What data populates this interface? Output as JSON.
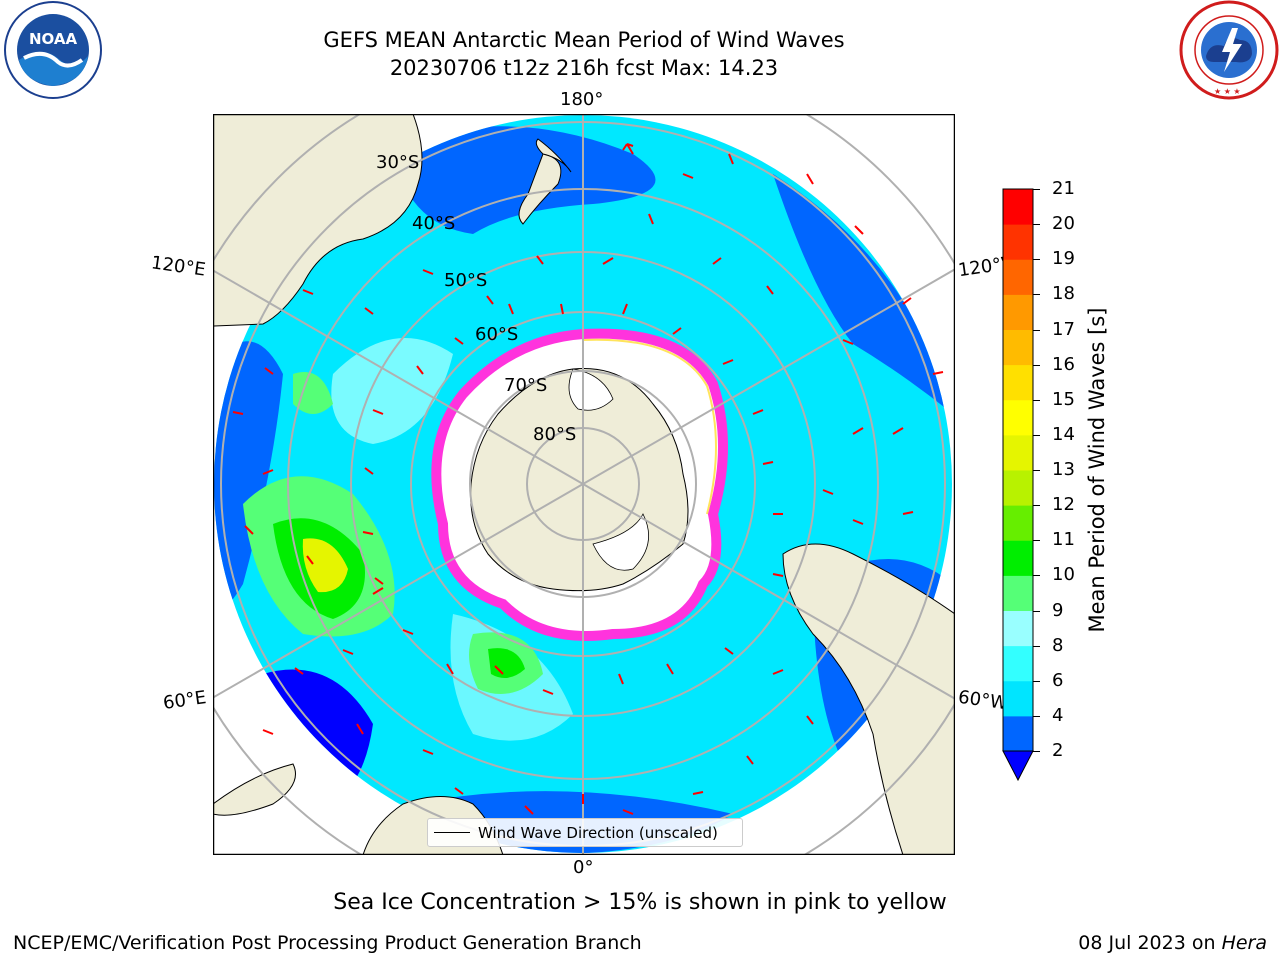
{
  "title": {
    "line1": "GEFS MEAN Antarctic Mean Period of Wind Waves",
    "line2": "20230706 t12z 216h fcst   Max: 14.23"
  },
  "logos": {
    "noaa": {
      "text": "NOAA",
      "ring_text": "NATIONAL OCEANIC AND ATMOSPHERIC ADMINISTRATION · U.S. DEPARTMENT OF COMMERCE"
    },
    "nws": {
      "ring_text": "NATIONAL WEATHER SERVICE"
    }
  },
  "map": {
    "projection": "south-polar-stereographic",
    "lon_labels": [
      "180°",
      "120°E",
      "120°W",
      "60°E",
      "60°W",
      "0°"
    ],
    "lat_labels": [
      "30°S",
      "40°S",
      "50°S",
      "60°S",
      "70°S",
      "80°S"
    ],
    "legend_label": "Wind Wave Direction (unscaled)",
    "colors": {
      "land": "#efedd8",
      "ice_interior": "#ffffff",
      "ice_edge": "#ff33dd",
      "arrow": "#ff0000"
    }
  },
  "colorbar": {
    "label": "Mean Period of Wind Waves [s]",
    "ticks": [
      "2",
      "4",
      "6",
      "8",
      "9",
      "10",
      "11",
      "12",
      "13",
      "14",
      "15",
      "16",
      "17",
      "18",
      "19",
      "20",
      "21"
    ],
    "extend_color": "#0000ff",
    "colors": [
      "#0066ff",
      "#00e5ff",
      "#33ffff",
      "#99ffff",
      "#55ff77",
      "#00ee00",
      "#66ee00",
      "#b8f200",
      "#e5f500",
      "#ffff00",
      "#ffe000",
      "#ffbb00",
      "#ff9900",
      "#ff6600",
      "#ff3300",
      "#ff0000"
    ]
  },
  "note": "Sea Ice Concentration > 15% is shown in pink to yellow",
  "footer": {
    "left": "NCEP/EMC/Verification Post Processing Product Generation Branch",
    "date": "08 Jul 2023 on ",
    "host": "Hera"
  }
}
